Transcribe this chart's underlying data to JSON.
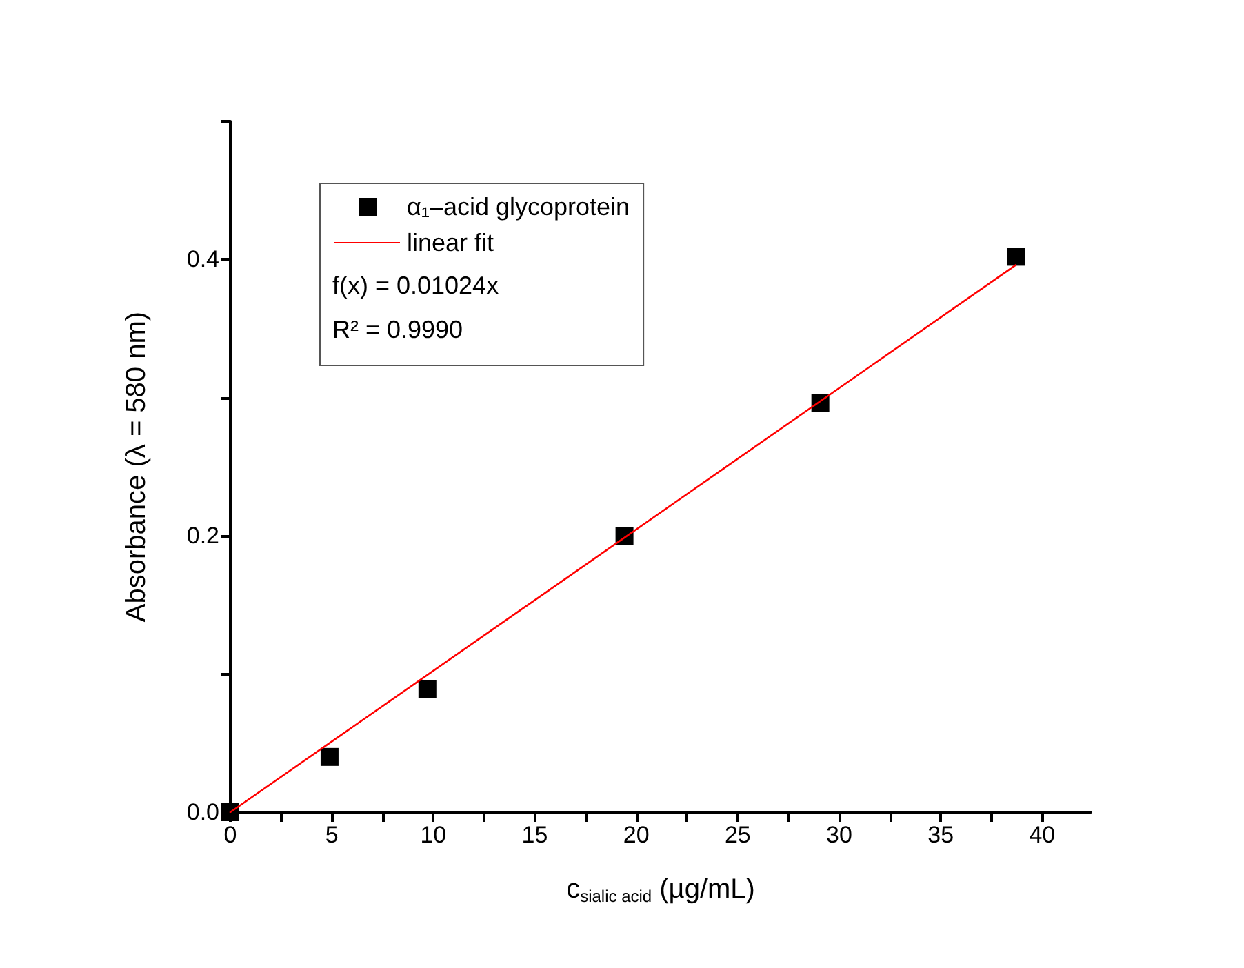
{
  "chart_data": {
    "type": "scatter",
    "xlabel": "c$_{sialic acid}$ (µg/mL)",
    "ylabel": "Absorbance (λ = 580 nm)",
    "series": [
      {
        "name": "α₁–acid glycoprotein",
        "color": "#000000",
        "marker": "square",
        "x": [
          0,
          4.89,
          9.71,
          19.42,
          29.07,
          38.7
        ],
        "values": [
          0,
          0.04,
          0.089,
          0.2,
          0.296,
          0.402
        ]
      },
      {
        "name": "linear fit",
        "type": "line",
        "color": "#ff0000",
        "marker": "none",
        "line_style": "solid",
        "x": [
          0,
          38.7
        ],
        "values": [
          0,
          0.396
        ]
      }
    ],
    "annotations": [
      "f(x) = 0.01024x",
      "R² = 0.9990"
    ],
    "xlim": [
      0,
      42.4
    ],
    "xticks": [
      0,
      {
        "value": 2.5,
        "label": null
      },
      5,
      {
        "value": 7.5,
        "label": null
      },
      10,
      {
        "value": 12.5,
        "label": null
      },
      15,
      {
        "value": 17.5,
        "label": null
      },
      20,
      {
        "value": 22.5,
        "label": null
      },
      25,
      {
        "value": 27.5,
        "label": null
      },
      30,
      {
        "value": 32.5,
        "label": null
      },
      35,
      {
        "value": 37.5,
        "label": null
      },
      40
    ],
    "ylim": [
      0,
      0.5
    ],
    "yticks": [
      {
        "value": 0,
        "label": "0.0"
      },
      {
        "value": 0.1,
        "label": null
      },
      {
        "value": 0.2,
        "label": "0.2"
      },
      {
        "value": 0.3,
        "label": null
      },
      {
        "value": 0.4,
        "label": "0.4"
      },
      {
        "value": 0.5,
        "label": null
      }
    ],
    "grid": false,
    "legend": "top left"
  }
}
